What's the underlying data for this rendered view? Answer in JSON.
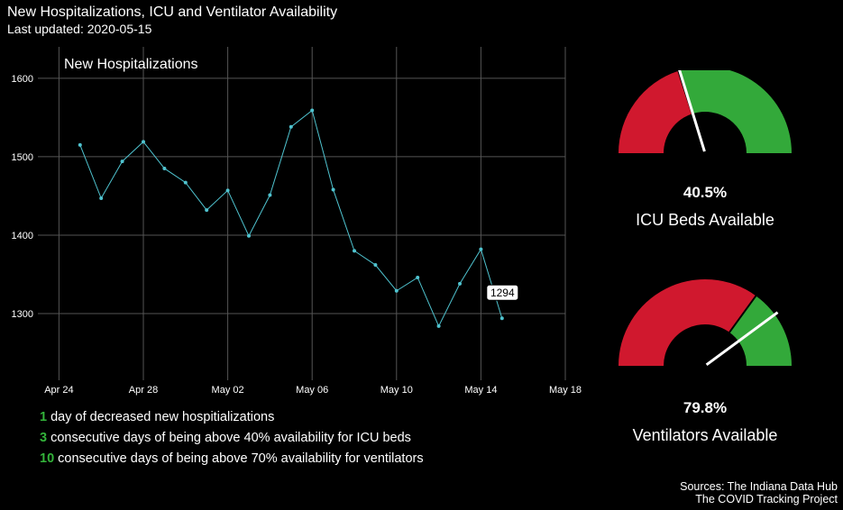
{
  "header": {
    "title": "New Hospitalizations, ICU and Ventilator Availability",
    "subtitle": "Last updated: 2020-05-15"
  },
  "chart_data": [
    {
      "type": "line",
      "title": "New Hospitalizations",
      "x": [
        "2020-04-25",
        "2020-04-26",
        "2020-04-27",
        "2020-04-28",
        "2020-04-29",
        "2020-04-30",
        "2020-05-01",
        "2020-05-02",
        "2020-05-03",
        "2020-05-04",
        "2020-05-05",
        "2020-05-06",
        "2020-05-07",
        "2020-05-08",
        "2020-05-09",
        "2020-05-10",
        "2020-05-11",
        "2020-05-12",
        "2020-05-13",
        "2020-05-14",
        "2020-05-15"
      ],
      "series": [
        {
          "values": [
            1515,
            1447,
            1494,
            1519,
            1485,
            1467,
            1432,
            1457,
            1399,
            1451,
            1538,
            1559,
            1458,
            1380,
            1362,
            1329,
            1346,
            1284,
            1338,
            1382,
            1294
          ]
        }
      ],
      "x_ticks": [
        "Apr 24",
        "Apr 28",
        "May 02",
        "May 06",
        "May 10",
        "May 14",
        "May 18"
      ],
      "x_tick_dates": [
        "2020-04-24",
        "2020-04-28",
        "2020-05-02",
        "2020-05-06",
        "2020-05-10",
        "2020-05-14",
        "2020-05-18"
      ],
      "y_ticks": [
        1300,
        1400,
        1500,
        1600
      ],
      "xlim": [
        "2020-04-23",
        "2020-05-18"
      ],
      "ylim": [
        1215,
        1640
      ],
      "annotation": {
        "x": "2020-05-15",
        "label": "1294"
      },
      "line_color": "#4fc3cf",
      "grid": true
    },
    {
      "type": "gauge",
      "value": 40.5,
      "range": [
        0,
        100
      ],
      "value_label": "40.5%",
      "label": "ICU Beds Available",
      "threshold": 40,
      "colors": {
        "below": "#d0182e",
        "above": "#33a93a",
        "needle": "#ffffff"
      }
    },
    {
      "type": "gauge",
      "value": 79.8,
      "range": [
        0,
        100
      ],
      "value_label": "79.8%",
      "label": "Ventilators Available",
      "threshold": 70,
      "colors": {
        "below": "#d0182e",
        "above": "#33a93a",
        "needle": "#ffffff"
      }
    }
  ],
  "stats": [
    {
      "count": "1",
      "text": "day of decreased new hospitializations"
    },
    {
      "count": "3",
      "text": "consecutive days of being above 40% availability for ICU beds"
    },
    {
      "count": "10",
      "text": "consecutive days of being above 70% availability for ventilators"
    }
  ],
  "sources": {
    "line1": "Sources: The Indiana Data Hub",
    "line2": "The COVID Tracking Project"
  }
}
